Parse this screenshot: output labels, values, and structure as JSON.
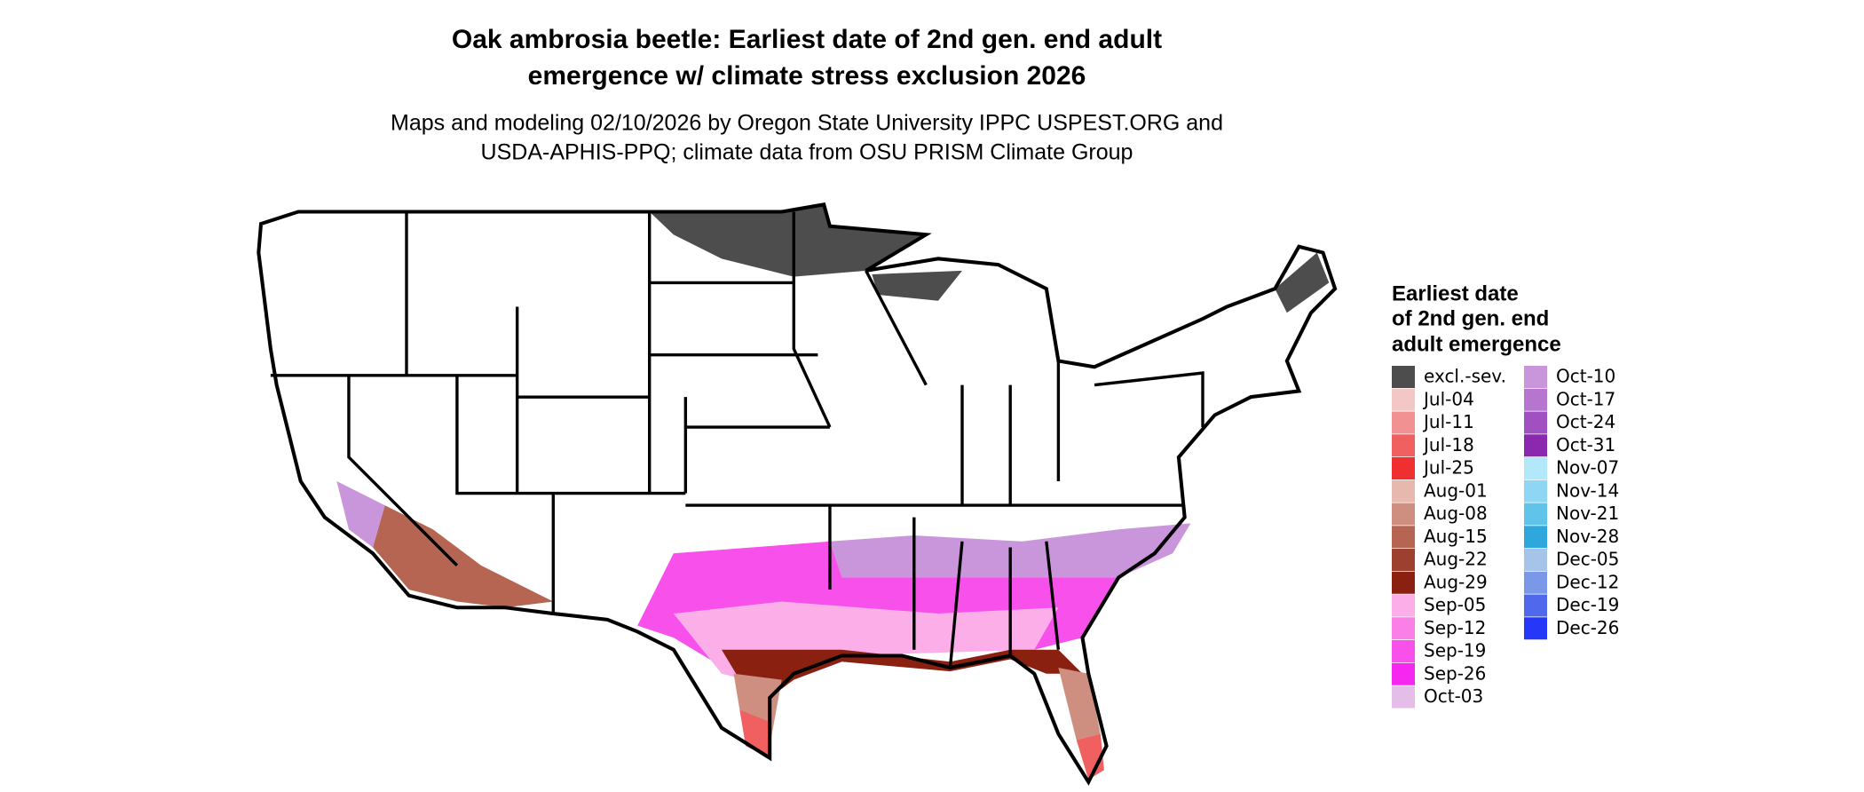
{
  "title": [
    "Oak ambrosia beetle: Earliest date of 2nd gen. end adult",
    "emergence w/ climate stress exclusion 2026"
  ],
  "subtitle": [
    "Maps and modeling 02/10/2026 by Oregon State University IPPC USPEST.ORG and",
    "USDA-APHIS-PPQ; climate data from OSU PRISM Climate Group"
  ],
  "legend": {
    "title": [
      "Earliest date",
      "of 2nd gen. end",
      "adult emergence"
    ],
    "items": [
      {
        "label": "excl.-sev.",
        "color": "#4d4d4d"
      },
      {
        "label": "Jul-04",
        "color": "#f4c7c7"
      },
      {
        "label": "Jul-11",
        "color": "#f29191"
      },
      {
        "label": "Jul-18",
        "color": "#f06060"
      },
      {
        "label": "Jul-25",
        "color": "#f03030"
      },
      {
        "label": "Aug-01",
        "color": "#e6b8ae"
      },
      {
        "label": "Aug-08",
        "color": "#cf8f80"
      },
      {
        "label": "Aug-15",
        "color": "#b56552"
      },
      {
        "label": "Aug-22",
        "color": "#9e4030"
      },
      {
        "label": "Aug-29",
        "color": "#8a2010"
      },
      {
        "label": "Sep-05",
        "color": "#fcaee8"
      },
      {
        "label": "Sep-12",
        "color": "#fa80e8"
      },
      {
        "label": "Sep-19",
        "color": "#f850ea"
      },
      {
        "label": "Sep-26",
        "color": "#f628f0"
      },
      {
        "label": "Oct-03",
        "color": "#e4bde8"
      },
      {
        "label": "Oct-10",
        "color": "#c996dc"
      },
      {
        "label": "Oct-17",
        "color": "#b675cf"
      },
      {
        "label": "Oct-24",
        "color": "#a050c0"
      },
      {
        "label": "Oct-31",
        "color": "#8a28b0"
      },
      {
        "label": "Nov-07",
        "color": "#b3e8fb"
      },
      {
        "label": "Nov-14",
        "color": "#8ed6f3"
      },
      {
        "label": "Nov-21",
        "color": "#5fc3ea"
      },
      {
        "label": "Nov-28",
        "color": "#2ea8dc"
      },
      {
        "label": "Dec-05",
        "color": "#a6c4ea"
      },
      {
        "label": "Dec-12",
        "color": "#7b98e8"
      },
      {
        "label": "Dec-19",
        "color": "#5068ec"
      },
      {
        "label": "Dec-26",
        "color": "#2538f8"
      }
    ]
  }
}
